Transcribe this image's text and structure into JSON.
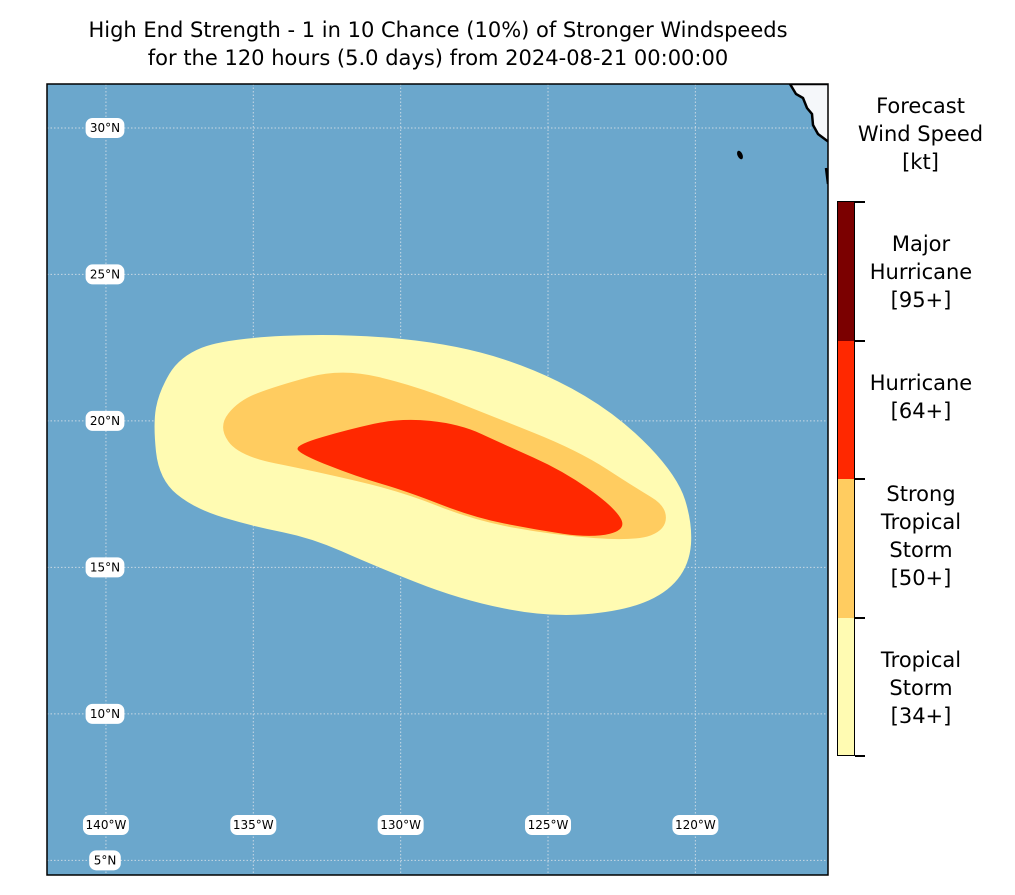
{
  "title": {
    "line1": "High End Strength - 1 in 10 Chance (10%) of Stronger Windspeeds",
    "line2": "for the 120 hours (5.0 days) from 2024-08-21 00:00:00"
  },
  "map": {
    "extent": {
      "lon_min": -142,
      "lon_max": -115.5,
      "lat_min": 4.5,
      "lat_max": 31.5
    },
    "ocean_color": "#6ba7cc",
    "land_color": "#f5f7fa",
    "lat_labels": [
      "30°N",
      "25°N",
      "20°N",
      "15°N",
      "10°N",
      "5°N"
    ],
    "lat_values": [
      30,
      25,
      20,
      15,
      10,
      5
    ],
    "lon_labels": [
      "140°W",
      "135°W",
      "130°W",
      "125°W",
      "120°W"
    ],
    "lon_values": [
      -140,
      -135,
      -130,
      -125,
      -120
    ],
    "wind_swath": {
      "tropical_storm": [
        [
          -138.2,
          21
        ],
        [
          -137.5,
          22.2
        ],
        [
          -136,
          22.8
        ],
        [
          -132,
          23
        ],
        [
          -128,
          22.6
        ],
        [
          -125,
          21.6
        ],
        [
          -122.5,
          20.1
        ],
        [
          -120.6,
          18.1
        ],
        [
          -120.1,
          16.5
        ],
        [
          -120.2,
          15.1
        ],
        [
          -121,
          14.1
        ],
        [
          -122.5,
          13.5
        ],
        [
          -125,
          13.3
        ],
        [
          -128,
          13.9
        ],
        [
          -131,
          15.1
        ],
        [
          -133,
          16
        ],
        [
          -135,
          16.4
        ],
        [
          -137,
          17
        ],
        [
          -138.2,
          18
        ],
        [
          -138.4,
          19.9
        ]
      ],
      "strong_tropical_storm": [
        [
          -136.2,
          19.8
        ],
        [
          -135.5,
          20.7
        ],
        [
          -134.2,
          21.2
        ],
        [
          -132,
          21.8
        ],
        [
          -129.5,
          21.2
        ],
        [
          -127,
          20.2
        ],
        [
          -124,
          19
        ],
        [
          -122,
          17.7
        ],
        [
          -121,
          17.1
        ],
        [
          -121,
          16.3
        ],
        [
          -122,
          15.9
        ],
        [
          -124.8,
          16.1
        ],
        [
          -127.5,
          16.6
        ],
        [
          -130,
          17.6
        ],
        [
          -133,
          18.3
        ],
        [
          -135.5,
          18.8
        ]
      ],
      "hurricane": [
        [
          -133.5,
          19.2
        ],
        [
          -131.8,
          19.7
        ],
        [
          -130,
          20.1
        ],
        [
          -128,
          19.9
        ],
        [
          -126.5,
          19.2
        ],
        [
          -124.5,
          18.3
        ],
        [
          -122.8,
          17.1
        ],
        [
          -122.3,
          16.3
        ],
        [
          -123.5,
          16
        ],
        [
          -125.5,
          16.3
        ],
        [
          -127.5,
          16.7
        ],
        [
          -129.8,
          17.6
        ],
        [
          -131.5,
          18.1
        ],
        [
          -133.5,
          18.9
        ]
      ]
    }
  },
  "colorbar": {
    "title_lines": [
      "Forecast",
      "Wind Speed",
      "[kt]"
    ],
    "categories": [
      {
        "label": "Major\nHurricane\n[95+]",
        "color": "#7b0000"
      },
      {
        "label": "Hurricane\n[64+]",
        "color": "#ff2800"
      },
      {
        "label": "Strong\nTropical\nStorm\n[50+]",
        "color": "#ffcc60"
      },
      {
        "label": "Tropical\nStorm\n[34+]",
        "color": "#fffbb2"
      }
    ]
  }
}
